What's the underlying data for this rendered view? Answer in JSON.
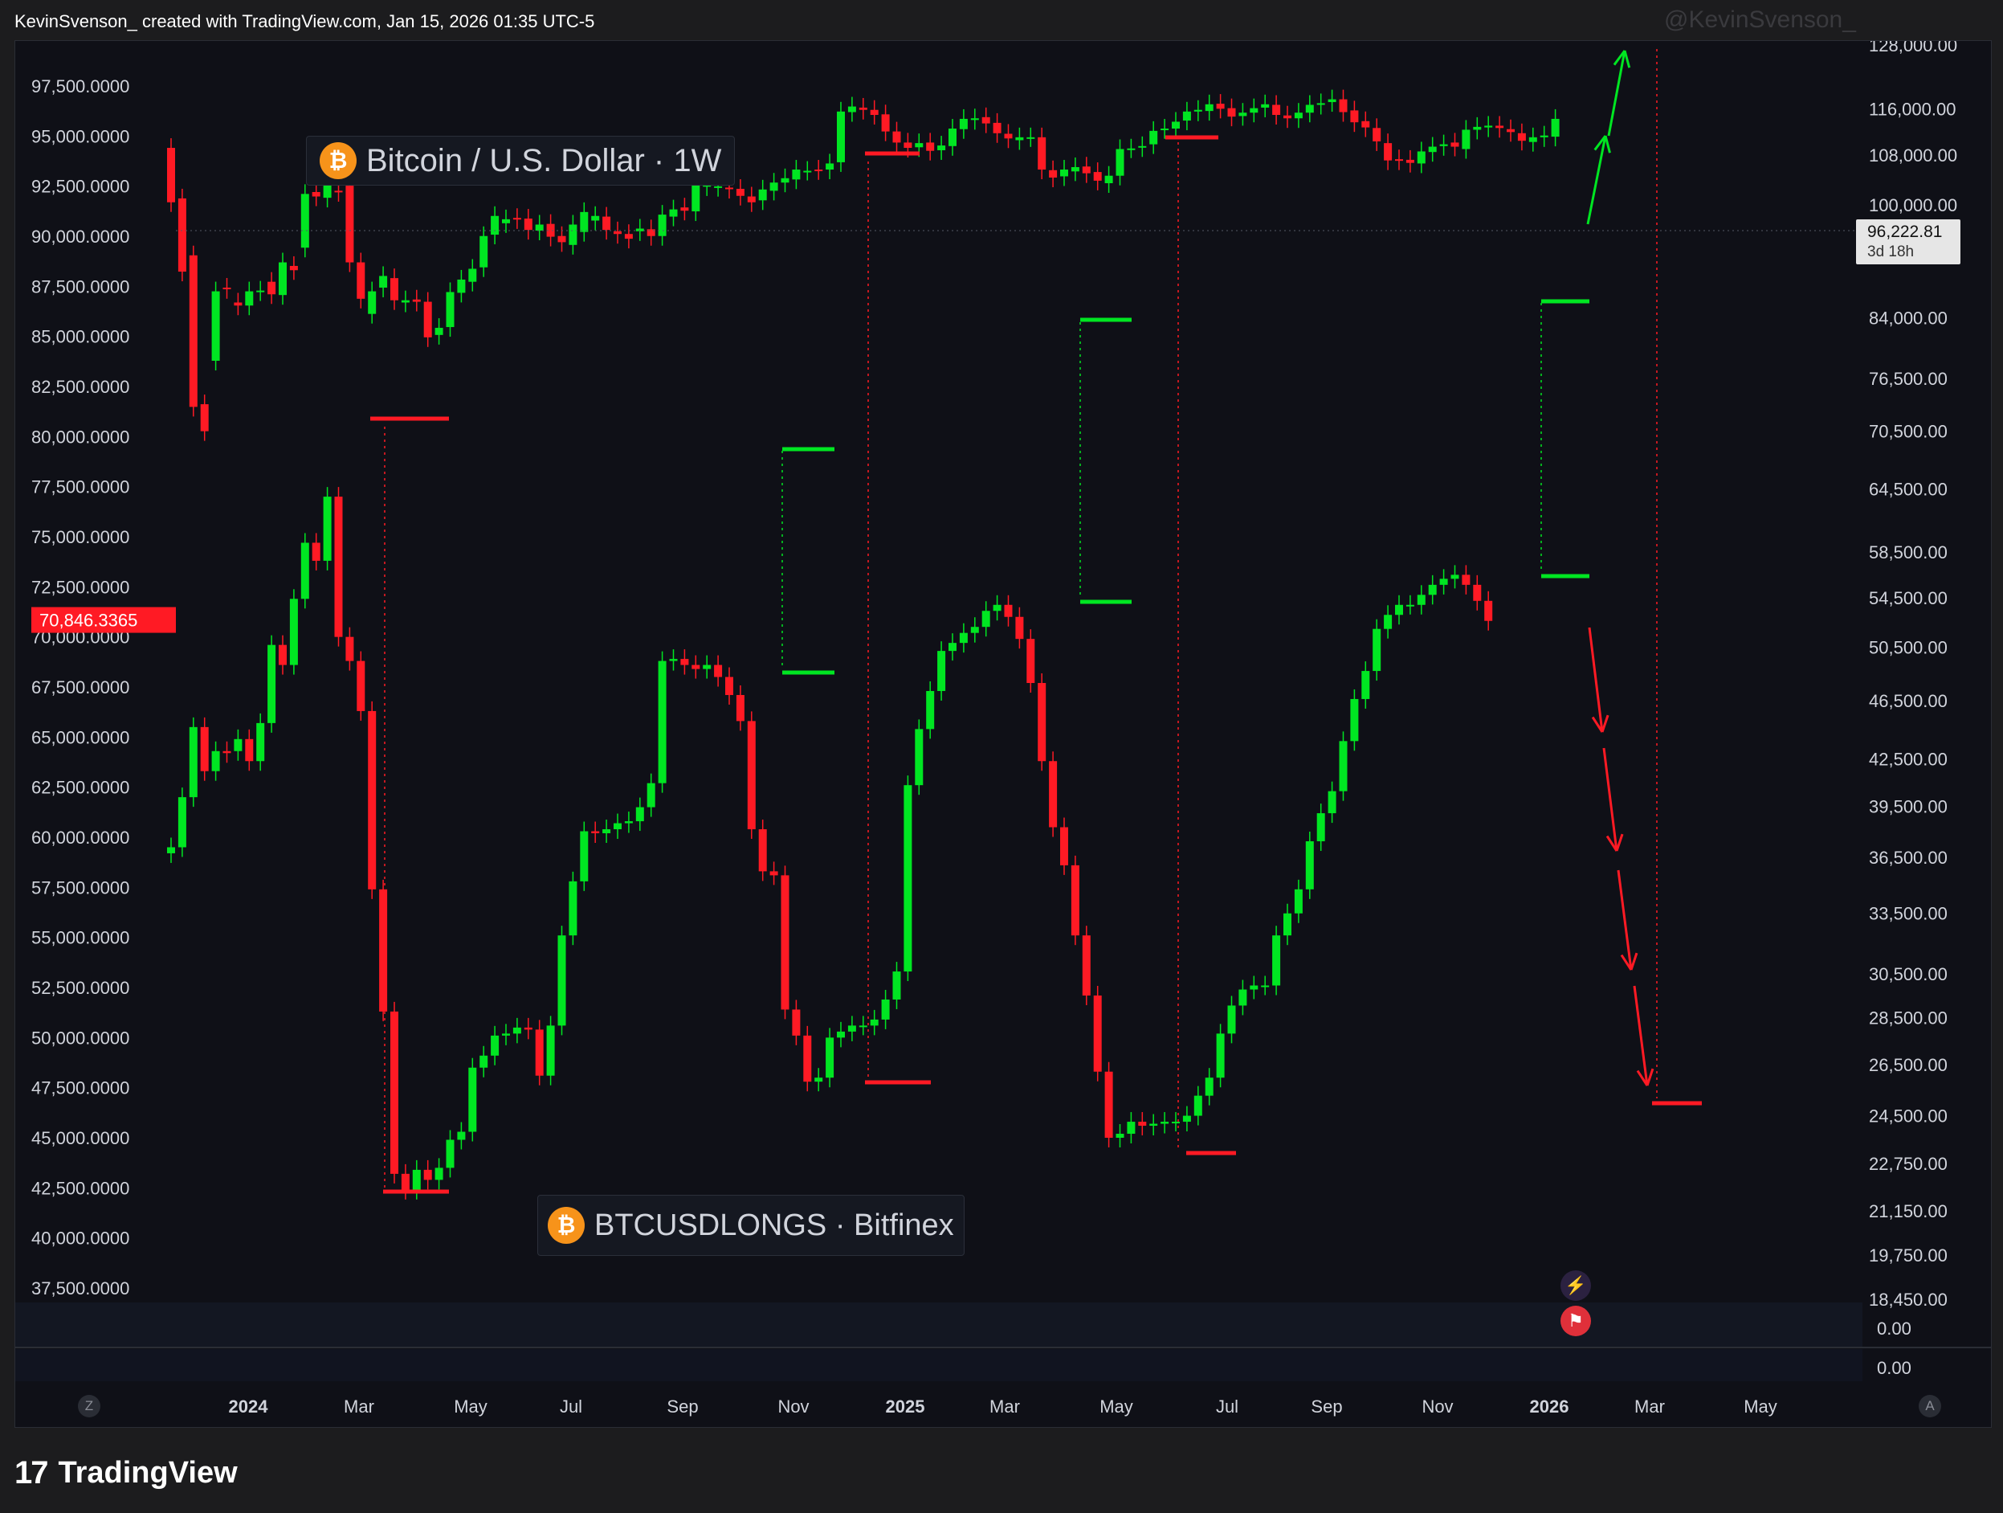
{
  "header": {
    "credit": "KevinSvenson_ created with TradingView.com, Jan 15, 2026 01:35 UTC-5",
    "watermark": "@KevinSvenson_"
  },
  "legends": {
    "top": {
      "icon": "bitcoin-icon",
      "symbol": "₿",
      "text": "Bitcoin / U.S. Dollar · 1W"
    },
    "bottom": {
      "icon": "bitcoin-icon",
      "symbol": "₿",
      "text": "BTCUSDLONGS · Bitfinex"
    }
  },
  "footer": {
    "logo_text": "17",
    "brand": "TradingView"
  },
  "corner_buttons": {
    "left": "Z",
    "right": "A"
  },
  "events": [
    "lightning-event-icon",
    "us-flag-event-icon"
  ],
  "colors": {
    "up": "#00e622",
    "down": "#ff1a24",
    "background": "#0f1017",
    "text": "#d1d4dc",
    "grid_text": "#d1d4dc"
  },
  "chart_data": {
    "type": "candlestick",
    "timeframe": "1W",
    "x_start": "2023-11-20",
    "x_ticks": [
      "2024",
      "Mar",
      "May",
      "Jul",
      "Sep",
      "Nov",
      "2025",
      "Mar",
      "May",
      "Jul",
      "Sep",
      "Nov",
      "2026",
      "Mar",
      "May"
    ],
    "bold_x_ticks": [
      "2024",
      "2025",
      "2026"
    ],
    "left_axis": {
      "series": "BTCUSDLONGS · Bitfinex",
      "range": [
        37500,
        98000
      ],
      "ticks": [
        "97,500.0000",
        "95,000.0000",
        "92,500.0000",
        "90,000.0000",
        "87,500.0000",
        "85,000.0000",
        "82,500.0000",
        "80,000.0000",
        "77,500.0000",
        "75,000.0000",
        "72,500.0000",
        "70,000.0000",
        "67,500.0000",
        "65,000.0000",
        "62,500.0000",
        "60,000.0000",
        "57,500.0000",
        "55,000.0000",
        "52,500.0000",
        "50,000.0000",
        "47,500.0000",
        "45,000.0000",
        "42,500.0000",
        "40,000.0000",
        "37,500.0000"
      ],
      "last_value_label": "70,846.3365"
    },
    "right_axis": {
      "series": "Bitcoin / U.S. Dollar · 1W",
      "scale": "log",
      "ticks": [
        "128,000.00",
        "116,000.00",
        "108,000.00",
        "100,000.00",
        "84,000.00",
        "76,500.00",
        "70,500.00",
        "64,500.00",
        "58,500.00",
        "54,500.00",
        "50,500.00",
        "46,500.00",
        "42,500.00",
        "39,500.00",
        "36,500.00",
        "33,500.00",
        "30,500.00",
        "28,500.00",
        "26,500.00",
        "24,500.00",
        "22,750.00",
        "21,150.00",
        "19,750.00",
        "18,450.00"
      ],
      "last_price_label": "96,222.81",
      "countdown_label": "3d 18h"
    },
    "sub_pane_ticks": [
      "0.00",
      "0.00"
    ],
    "btcusd_series": [
      [
        91.2,
        82.4
      ],
      [
        83.0,
        72.2
      ],
      [
        74.5,
        55.2
      ],
      [
        55.5,
        52.5
      ],
      [
        60.6,
        69.5
      ],
      [
        70.0,
        69.8
      ],
      [
        68.0,
        67.6
      ],
      [
        67.6,
        69.5
      ],
      [
        69.5,
        69.6
      ],
      [
        70.8,
        69.1
      ],
      [
        69.0,
        73.5
      ],
      [
        73.0,
        72.4
      ],
      [
        75.6,
        83.7
      ],
      [
        84.0,
        83.3
      ],
      [
        83.1,
        85.1
      ],
      [
        84.2,
        84.0
      ],
      [
        85.0,
        73.5
      ],
      [
        73.5,
        68.5
      ],
      [
        66.5,
        69.5
      ],
      [
        70.0,
        71.6
      ],
      [
        71.3,
        68.3
      ],
      [
        68.0,
        68.3
      ],
      [
        68.4,
        68.1
      ],
      [
        68.1,
        63.5
      ],
      [
        63.8,
        64.7
      ],
      [
        64.8,
        69.4
      ],
      [
        69.3,
        71.1
      ],
      [
        70.8,
        72.6
      ],
      [
        72.8,
        77.3
      ],
      [
        77.5,
        80.3
      ],
      [
        79.2,
        79.8
      ],
      [
        80.0,
        79.8
      ],
      [
        79.9,
        78.2
      ],
      [
        78.1,
        79.0
      ],
      [
        79.1,
        77.2
      ],
      [
        77.3,
        76.4
      ],
      [
        76.0,
        79.0
      ],
      [
        77.9,
        80.9
      ],
      [
        79.6,
        80.3
      ],
      [
        80.2,
        78.2
      ],
      [
        78.0,
        77.6
      ],
      [
        77.6,
        76.9
      ],
      [
        78.0,
        78.4
      ],
      [
        78.3,
        77.3
      ],
      [
        77.3,
        80.5
      ],
      [
        80.2,
        81.3
      ],
      [
        81.6,
        81.1
      ],
      [
        81.0,
        85.3
      ],
      [
        84.9,
        85.1
      ],
      [
        84.8,
        84.9
      ],
      [
        84.7,
        84.5
      ],
      [
        84.5,
        83.4
      ],
      [
        83.3,
        82.4
      ],
      [
        82.7,
        84.4
      ],
      [
        84.2,
        85.5
      ],
      [
        85.5,
        86.2
      ],
      [
        86.0,
        87.6
      ],
      [
        87.4,
        87.4
      ],
      [
        87.6,
        87.5
      ],
      [
        87.6,
        88.6
      ],
      [
        88.8,
        97.5
      ],
      [
        97.4,
        98.4
      ],
      [
        98.2,
        97.8
      ],
      [
        97.8,
        96.9
      ],
      [
        97.0,
        94.0
      ],
      [
        94.0,
        92.1
      ],
      [
        92.1,
        91.2
      ],
      [
        91.3,
        92.0
      ],
      [
        92.1,
        90.7
      ],
      [
        90.8,
        91.6
      ],
      [
        91.5,
        94.5
      ],
      [
        94.4,
        96.2
      ],
      [
        96.0,
        96.3
      ],
      [
        96.5,
        95.4
      ],
      [
        95.5,
        93.7
      ],
      [
        93.6,
        92.8
      ],
      [
        92.5,
        93.0
      ],
      [
        93.0,
        93.0
      ],
      [
        93.0,
        87.6
      ],
      [
        87.5,
        86.3
      ],
      [
        86.5,
        87.6
      ],
      [
        87.3,
        88.0
      ],
      [
        88.1,
        87.0
      ],
      [
        87.2,
        85.8
      ],
      [
        85.4,
        86.6
      ],
      [
        86.6,
        91.0
      ],
      [
        91.1,
        91.1
      ],
      [
        91.3,
        91.5
      ],
      [
        91.8,
        94.1
      ],
      [
        94.4,
        94.5
      ],
      [
        94.5,
        95.7
      ],
      [
        95.9,
        97.5
      ],
      [
        97.5,
        97.8
      ],
      [
        97.6,
        98.8
      ],
      [
        98.9,
        98.0
      ],
      [
        98.1,
        96.6
      ],
      [
        96.7,
        97.3
      ],
      [
        97.3,
        98.1
      ],
      [
        98.2,
        98.8
      ],
      [
        98.7,
        96.9
      ],
      [
        96.8,
        96.3
      ],
      [
        96.3,
        97.3
      ],
      [
        97.3,
        98.7
      ],
      [
        98.7,
        99.0
      ],
      [
        99.2,
        99.7
      ],
      [
        99.7,
        97.4
      ],
      [
        97.7,
        95.6
      ],
      [
        95.8,
        94.7
      ],
      [
        94.6,
        92.3
      ],
      [
        92.0,
        89.1
      ],
      [
        89.3,
        89.1
      ],
      [
        89.2,
        88.7
      ],
      [
        88.6,
        90.6
      ],
      [
        90.5,
        91.4
      ],
      [
        91.5,
        91.8
      ],
      [
        92.1,
        91.4
      ],
      [
        91.0,
        94.3
      ],
      [
        94.3,
        94.8
      ],
      [
        94.7,
        95.0
      ],
      [
        95.0,
        94.6
      ],
      [
        94.4,
        93.9
      ],
      [
        93.7,
        92.4
      ],
      [
        92.2,
        93.0
      ],
      [
        93.0,
        93.3
      ],
      [
        93.1,
        96.2
      ]
    ],
    "btcusdlongs_series": [
      [
        59.2,
        59.5
      ],
      [
        59.5,
        62.0
      ],
      [
        62.0,
        65.5
      ],
      [
        65.5,
        63.3
      ],
      [
        63.3,
        64.3
      ],
      [
        64.3,
        64.2
      ],
      [
        64.3,
        64.9
      ],
      [
        64.9,
        63.8
      ],
      [
        63.8,
        65.7
      ],
      [
        65.7,
        69.6
      ],
      [
        69.6,
        68.6
      ],
      [
        68.6,
        71.9
      ],
      [
        71.9,
        74.7
      ],
      [
        74.7,
        73.8
      ],
      [
        73.8,
        77.0
      ],
      [
        77.0,
        70.0
      ],
      [
        70.0,
        68.8
      ],
      [
        68.8,
        66.3
      ],
      [
        66.3,
        57.4
      ],
      [
        57.4,
        51.3
      ],
      [
        51.3,
        43.2
      ],
      [
        43.2,
        42.4
      ],
      [
        42.4,
        43.4
      ],
      [
        43.4,
        42.9
      ],
      [
        42.9,
        43.5
      ],
      [
        43.5,
        44.9
      ],
      [
        44.9,
        45.3
      ],
      [
        45.3,
        48.5
      ],
      [
        48.5,
        49.1
      ],
      [
        49.1,
        50.1
      ],
      [
        50.1,
        50.2
      ],
      [
        50.2,
        50.5
      ],
      [
        50.5,
        50.4
      ],
      [
        50.4,
        48.1
      ],
      [
        48.1,
        50.6
      ],
      [
        50.6,
        55.1
      ],
      [
        55.1,
        57.8
      ],
      [
        57.8,
        60.3
      ],
      [
        60.3,
        60.2
      ],
      [
        60.2,
        60.4
      ],
      [
        60.4,
        60.7
      ],
      [
        60.7,
        60.8
      ],
      [
        60.8,
        61.5
      ],
      [
        61.5,
        62.7
      ],
      [
        62.7,
        68.8
      ],
      [
        68.8,
        68.9
      ],
      [
        68.9,
        68.6
      ],
      [
        68.6,
        68.4
      ],
      [
        68.4,
        68.6
      ],
      [
        68.6,
        68.0
      ],
      [
        68.0,
        67.1
      ],
      [
        67.1,
        65.8
      ],
      [
        65.8,
        60.4
      ],
      [
        60.4,
        58.3
      ],
      [
        58.3,
        58.1
      ],
      [
        58.1,
        51.4
      ],
      [
        51.4,
        50.1
      ],
      [
        50.1,
        47.8
      ],
      [
        47.8,
        48.0
      ],
      [
        48.0,
        50.0
      ],
      [
        50.0,
        50.3
      ],
      [
        50.3,
        50.6
      ],
      [
        50.6,
        50.6
      ],
      [
        50.6,
        50.9
      ],
      [
        50.9,
        51.9
      ],
      [
        51.9,
        53.3
      ],
      [
        53.3,
        62.6
      ],
      [
        62.6,
        65.4
      ],
      [
        65.4,
        67.3
      ],
      [
        67.3,
        69.3
      ],
      [
        69.3,
        69.7
      ],
      [
        69.7,
        70.2
      ],
      [
        70.2,
        70.5
      ],
      [
        70.5,
        71.3
      ],
      [
        71.3,
        71.6
      ],
      [
        71.6,
        71.0
      ],
      [
        71.0,
        69.9
      ],
      [
        69.9,
        67.7
      ],
      [
        67.7,
        63.8
      ],
      [
        63.8,
        60.5
      ],
      [
        60.5,
        58.6
      ],
      [
        58.6,
        55.1
      ],
      [
        55.1,
        52.1
      ],
      [
        52.1,
        48.3
      ],
      [
        48.3,
        45.0
      ],
      [
        45.0,
        45.2
      ],
      [
        45.2,
        45.8
      ],
      [
        45.8,
        45.6
      ],
      [
        45.6,
        45.7
      ],
      [
        45.7,
        45.8
      ],
      [
        45.8,
        45.8
      ],
      [
        45.8,
        46.1
      ],
      [
        46.1,
        47.1
      ],
      [
        47.1,
        48.0
      ],
      [
        48.0,
        50.2
      ],
      [
        50.2,
        51.6
      ],
      [
        51.6,
        52.4
      ],
      [
        52.4,
        52.6
      ],
      [
        52.6,
        52.6
      ],
      [
        52.6,
        55.1
      ],
      [
        55.1,
        56.2
      ],
      [
        56.2,
        57.4
      ],
      [
        57.4,
        59.8
      ],
      [
        59.8,
        61.2
      ],
      [
        61.2,
        62.3
      ],
      [
        62.3,
        64.8
      ],
      [
        64.8,
        66.9
      ],
      [
        66.9,
        68.3
      ],
      [
        68.3,
        70.4
      ],
      [
        70.4,
        71.1
      ],
      [
        71.1,
        71.6
      ],
      [
        71.6,
        71.6
      ],
      [
        71.6,
        72.1
      ],
      [
        72.1,
        72.6
      ],
      [
        72.6,
        72.9
      ],
      [
        72.9,
        73.1
      ],
      [
        73.1,
        72.6
      ],
      [
        72.6,
        71.8
      ],
      [
        71.8,
        70.8
      ]
    ],
    "x_axis_date_of_last_bar": "2026-01-12"
  }
}
